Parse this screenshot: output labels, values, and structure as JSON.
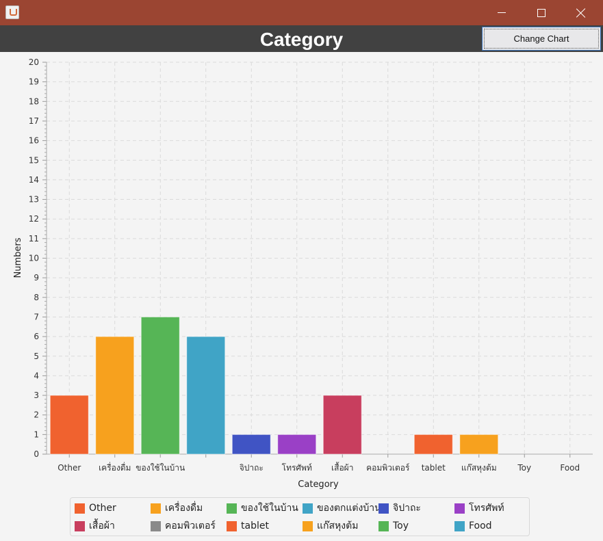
{
  "window": {
    "icon": "java-cup-icon",
    "controls": [
      "minimize-icon",
      "maximize-icon",
      "close-icon"
    ]
  },
  "header": {
    "title": "Category",
    "change_chart_label": "Change Chart"
  },
  "chart_data": {
    "type": "bar",
    "title": "Category",
    "xlabel": "Category",
    "ylabel": "Numbers",
    "ylim": [
      0,
      20
    ],
    "grid": true,
    "legend_position": "bottom",
    "categories": [
      "Other",
      "เครื่องดื่ม",
      "ของใช้ในบ้าน",
      "",
      "จิปาถะ",
      "โทรศัพท์",
      "เสื้อผ้า",
      "คอมพิวเตอร์",
      "tablet",
      "แก๊สหุงต้ม",
      "Toy",
      "Food"
    ],
    "values": [
      3,
      6,
      7,
      6,
      1,
      1,
      3,
      0,
      1,
      1,
      0,
      0
    ],
    "colors": [
      "#f0622f",
      "#f7a11e",
      "#56b556",
      "#40a4c6",
      "#4054c4",
      "#9a40c6",
      "#c83e5e",
      "#8a8a8a",
      "#f0622f",
      "#f7a11e",
      "#56b556",
      "#40a4c6"
    ],
    "legend": [
      "Other",
      "เครื่องดื่ม",
      "ของใช้ในบ้าน",
      "ของตกแต่งบ้าน",
      "จิปาถะ",
      "โทรศัพท์",
      "เสื้อผ้า",
      "คอมพิวเตอร์",
      "tablet",
      "แก๊สหุงต้ม",
      "Toy",
      "Food"
    ]
  }
}
